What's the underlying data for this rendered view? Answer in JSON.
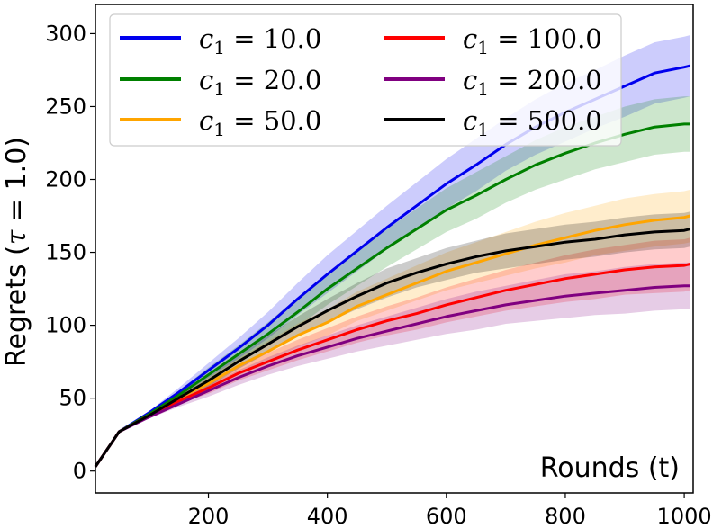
{
  "chart_data": {
    "type": "line",
    "xlabel": "Rounds (t)",
    "ylabel_prefix": "Regrets (",
    "ylabel_symbol": "τ",
    "ylabel_suffix": " = 1.0)",
    "xlim": [
      10,
      1015
    ],
    "ylim": [
      -15,
      320
    ],
    "xticks": [
      200,
      400,
      600,
      800,
      1000
    ],
    "yticks": [
      0,
      50,
      100,
      150,
      200,
      250,
      300
    ],
    "grid": false,
    "legend_position": "top-left",
    "legend_columns": 2,
    "x": [
      10,
      50,
      100,
      150,
      200,
      250,
      300,
      350,
      400,
      450,
      500,
      550,
      600,
      650,
      700,
      750,
      800,
      850,
      900,
      950,
      1000,
      1010
    ],
    "series": [
      {
        "name_sym": "c",
        "name_sub": "1",
        "name_val": "10.0",
        "label": "c_1 = 10.0",
        "color": "#0000ee",
        "values": [
          3,
          27,
          40,
          54,
          69,
          84,
          100,
          118,
          135,
          151,
          167,
          182,
          197,
          210,
          224,
          236,
          246,
          255,
          264,
          273,
          277,
          278
        ],
        "band": [
          0,
          0,
          1,
          3,
          5,
          7,
          9,
          11,
          13,
          14,
          15,
          16,
          17,
          18,
          18,
          19,
          20,
          20,
          21,
          21,
          21,
          21
        ]
      },
      {
        "name_sym": "c",
        "name_sub": "1",
        "name_val": "20.0",
        "label": "c_1 = 20.0",
        "color": "#008000",
        "values": [
          3,
          27,
          39,
          52,
          66,
          80,
          94,
          109,
          125,
          139,
          153,
          166,
          179,
          189,
          200,
          210,
          218,
          225,
          231,
          236,
          238,
          238
        ],
        "band": [
          0,
          0,
          1,
          3,
          5,
          6,
          8,
          10,
          11,
          12,
          13,
          14,
          15,
          16,
          16,
          17,
          18,
          18,
          19,
          19,
          19,
          19
        ]
      },
      {
        "name_sym": "c",
        "name_sub": "1",
        "name_val": "50.0",
        "label": "c_1 = 50.0",
        "color": "#ffa500",
        "values": [
          3,
          27,
          38,
          50,
          60,
          72,
          82,
          93,
          102,
          113,
          121,
          129,
          137,
          143,
          149,
          155,
          160,
          165,
          169,
          172,
          174,
          175
        ],
        "band": [
          0,
          0,
          1,
          2,
          4,
          5,
          7,
          8,
          9,
          10,
          11,
          12,
          13,
          14,
          15,
          16,
          17,
          17,
          18,
          18,
          18,
          18
        ]
      },
      {
        "name_sym": "c",
        "name_sub": "1",
        "name_val": "100.0",
        "label": "c_1 = 100.0",
        "color": "#ff0000",
        "values": [
          3,
          27,
          38,
          48,
          57,
          67,
          75,
          83,
          90,
          97,
          103,
          108,
          114,
          119,
          124,
          128,
          132,
          135,
          138,
          140,
          141,
          142
        ],
        "band": [
          0,
          0,
          1,
          2,
          4,
          5,
          6,
          7,
          8,
          9,
          10,
          11,
          12,
          13,
          14,
          15,
          16,
          17,
          17,
          18,
          18,
          18
        ]
      },
      {
        "name_sym": "c",
        "name_sub": "1",
        "name_val": "200.0",
        "label": "c_1 = 200.0",
        "color": "#800080",
        "values": [
          3,
          27,
          37,
          46,
          55,
          64,
          72,
          79,
          85,
          91,
          96,
          101,
          106,
          110,
          114,
          117,
          120,
          122,
          124,
          126,
          127,
          127
        ],
        "band": [
          0,
          0,
          1,
          2,
          4,
          5,
          6,
          7,
          8,
          9,
          10,
          11,
          12,
          13,
          13,
          14,
          15,
          15,
          16,
          16,
          16,
          16
        ]
      },
      {
        "name_sym": "c",
        "name_sub": "1",
        "name_val": "500.0",
        "label": "c_1 = 500.0",
        "color": "#000000",
        "values": [
          3,
          27,
          38,
          50,
          62,
          75,
          87,
          99,
          110,
          120,
          129,
          136,
          142,
          147,
          151,
          154,
          157,
          159,
          162,
          164,
          165,
          166
        ],
        "band": [
          0,
          0,
          1,
          2,
          4,
          5,
          6,
          7,
          8,
          9,
          10,
          10,
          11,
          11,
          12,
          12,
          12,
          12,
          12,
          12,
          12,
          12
        ]
      }
    ]
  }
}
